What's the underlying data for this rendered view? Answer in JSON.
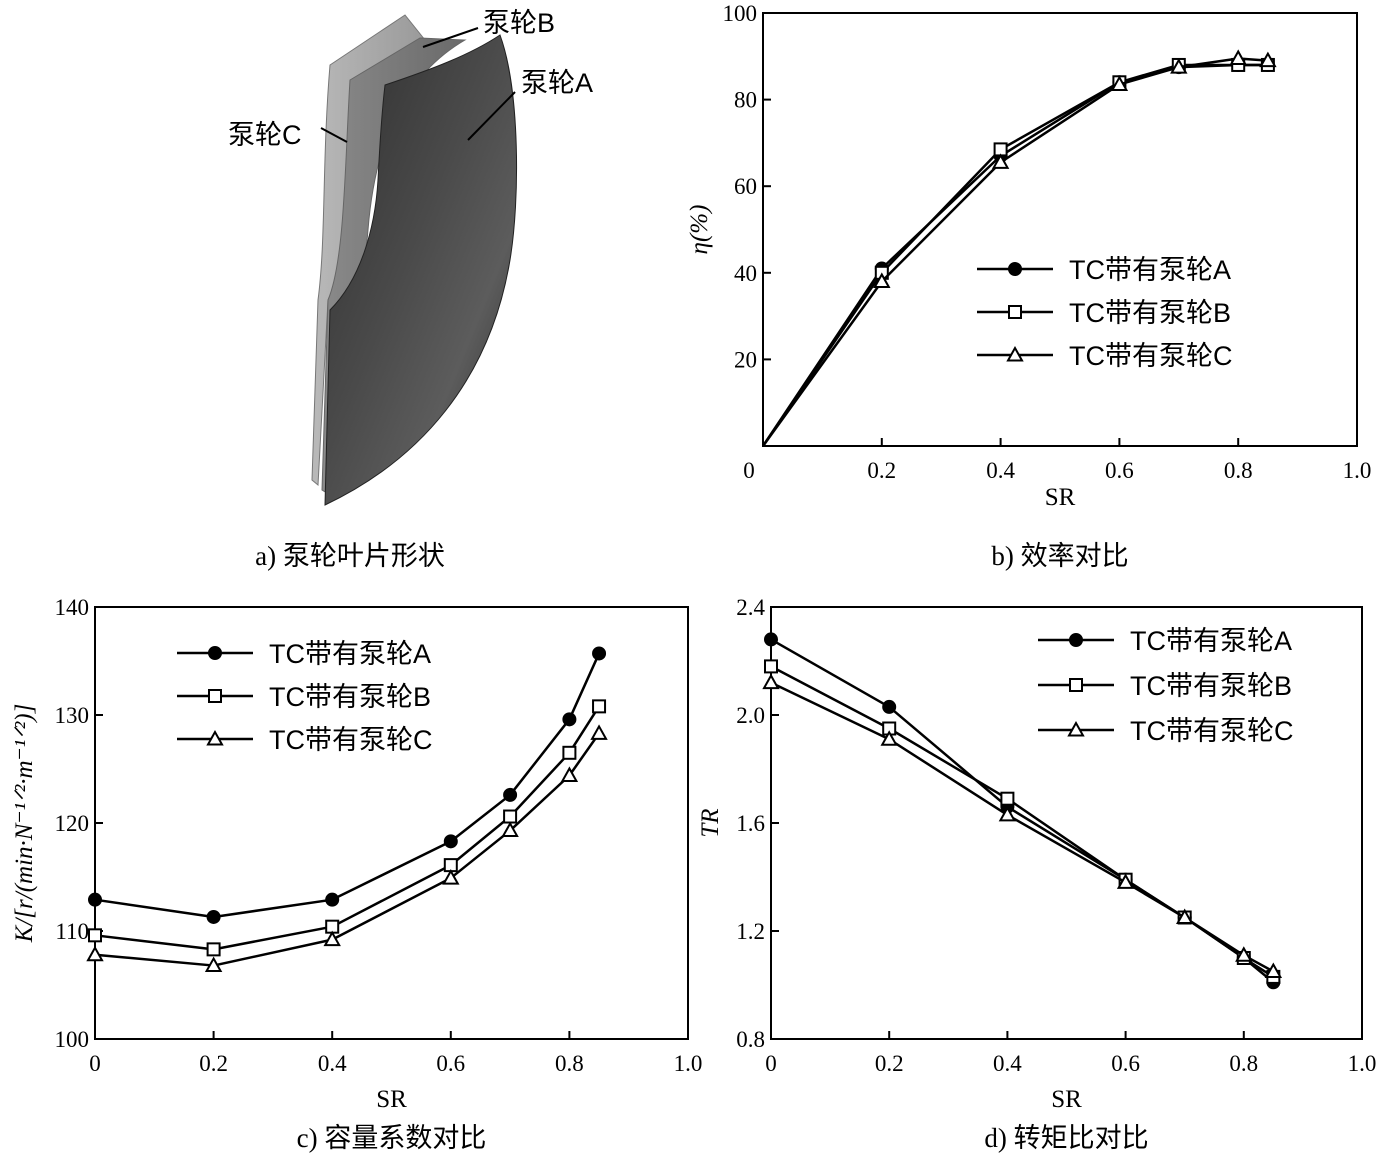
{
  "figure": {
    "blade": {
      "caption": "a) 泵轮叶片形状",
      "labels": {
        "a": "泵轮A",
        "b": "泵轮B",
        "c": "泵轮C"
      }
    }
  },
  "chart_data": [
    {
      "id": "efficiency",
      "type": "line",
      "caption": "b) 效率对比",
      "xlabel": "SR",
      "ylabel": "η(%)",
      "xlim": [
        0,
        1.0
      ],
      "ylim": [
        0,
        100
      ],
      "xticks": [
        "0",
        "0.2",
        "0.4",
        "0.6",
        "0.8",
        "1.0"
      ],
      "yticks": [
        "20",
        "40",
        "60",
        "80",
        "100"
      ],
      "legend_position": "center-right",
      "series": [
        {
          "name": "TC带有泵轮A",
          "marker": "circle",
          "x": [
            0,
            0.2,
            0.4,
            0.6,
            0.7,
            0.8,
            0.85
          ],
          "y": [
            0,
            41,
            67,
            84,
            87.5,
            88,
            88
          ]
        },
        {
          "name": "TC带有泵轮B",
          "marker": "square",
          "x": [
            0,
            0.2,
            0.4,
            0.6,
            0.7,
            0.8,
            0.85
          ],
          "y": [
            0,
            40,
            68.5,
            84,
            88,
            88,
            88
          ]
        },
        {
          "name": "TC带有泵轮C",
          "marker": "triangle",
          "x": [
            0,
            0.2,
            0.4,
            0.6,
            0.7,
            0.8,
            0.85
          ],
          "y": [
            0,
            38,
            65.5,
            83.5,
            87.5,
            89.5,
            89
          ]
        }
      ]
    },
    {
      "id": "capacity",
      "type": "line",
      "caption": "c) 容量系数对比",
      "xlabel": "SR",
      "ylabel": "K/[r/(min·N⁻¹ᐟ²·m⁻¹ᐟ²)]",
      "xlim": [
        0,
        1.0
      ],
      "ylim": [
        100,
        140
      ],
      "xticks": [
        "0",
        "0.2",
        "0.4",
        "0.6",
        "0.8",
        "1.0"
      ],
      "yticks": [
        "100",
        "110",
        "120",
        "130",
        "140"
      ],
      "legend_position": "top-left",
      "series": [
        {
          "name": "TC带有泵轮A",
          "marker": "circle",
          "x": [
            0,
            0.2,
            0.4,
            0.6,
            0.7,
            0.8,
            0.85
          ],
          "y": [
            112.9,
            111.3,
            112.9,
            118.3,
            122.6,
            129.6,
            135.7
          ]
        },
        {
          "name": "TC带有泵轮B",
          "marker": "square",
          "x": [
            0,
            0.2,
            0.4,
            0.6,
            0.7,
            0.8,
            0.85
          ],
          "y": [
            109.6,
            108.3,
            110.4,
            116.1,
            120.6,
            126.5,
            130.8
          ]
        },
        {
          "name": "TC带有泵轮C",
          "marker": "triangle",
          "x": [
            0,
            0.2,
            0.4,
            0.6,
            0.7,
            0.8,
            0.85
          ],
          "y": [
            107.8,
            106.8,
            109.2,
            114.9,
            119.3,
            124.4,
            128.3
          ]
        }
      ]
    },
    {
      "id": "torque_ratio",
      "type": "line",
      "caption": "d) 转矩比对比",
      "xlabel": "SR",
      "ylabel": "TR",
      "xlim": [
        0,
        1.0
      ],
      "ylim": [
        0.8,
        2.4
      ],
      "xticks": [
        "0",
        "0.2",
        "0.4",
        "0.6",
        "0.8",
        "1.0"
      ],
      "yticks": [
        "0.8",
        "1.2",
        "1.6",
        "2.0",
        "2.4"
      ],
      "legend_position": "top-right",
      "series": [
        {
          "name": "TC带有泵轮A",
          "marker": "circle",
          "x": [
            0,
            0.2,
            0.4,
            0.6,
            0.7,
            0.8,
            0.85
          ],
          "y": [
            2.28,
            2.03,
            1.66,
            1.39,
            1.25,
            1.1,
            1.01
          ]
        },
        {
          "name": "TC带有泵轮B",
          "marker": "square",
          "x": [
            0,
            0.2,
            0.4,
            0.6,
            0.7,
            0.8,
            0.85
          ],
          "y": [
            2.18,
            1.95,
            1.69,
            1.39,
            1.25,
            1.1,
            1.03
          ]
        },
        {
          "name": "TC带有泵轮C",
          "marker": "triangle",
          "x": [
            0,
            0.2,
            0.4,
            0.6,
            0.7,
            0.8,
            0.85
          ],
          "y": [
            2.12,
            1.91,
            1.63,
            1.38,
            1.25,
            1.11,
            1.05
          ]
        }
      ]
    }
  ]
}
